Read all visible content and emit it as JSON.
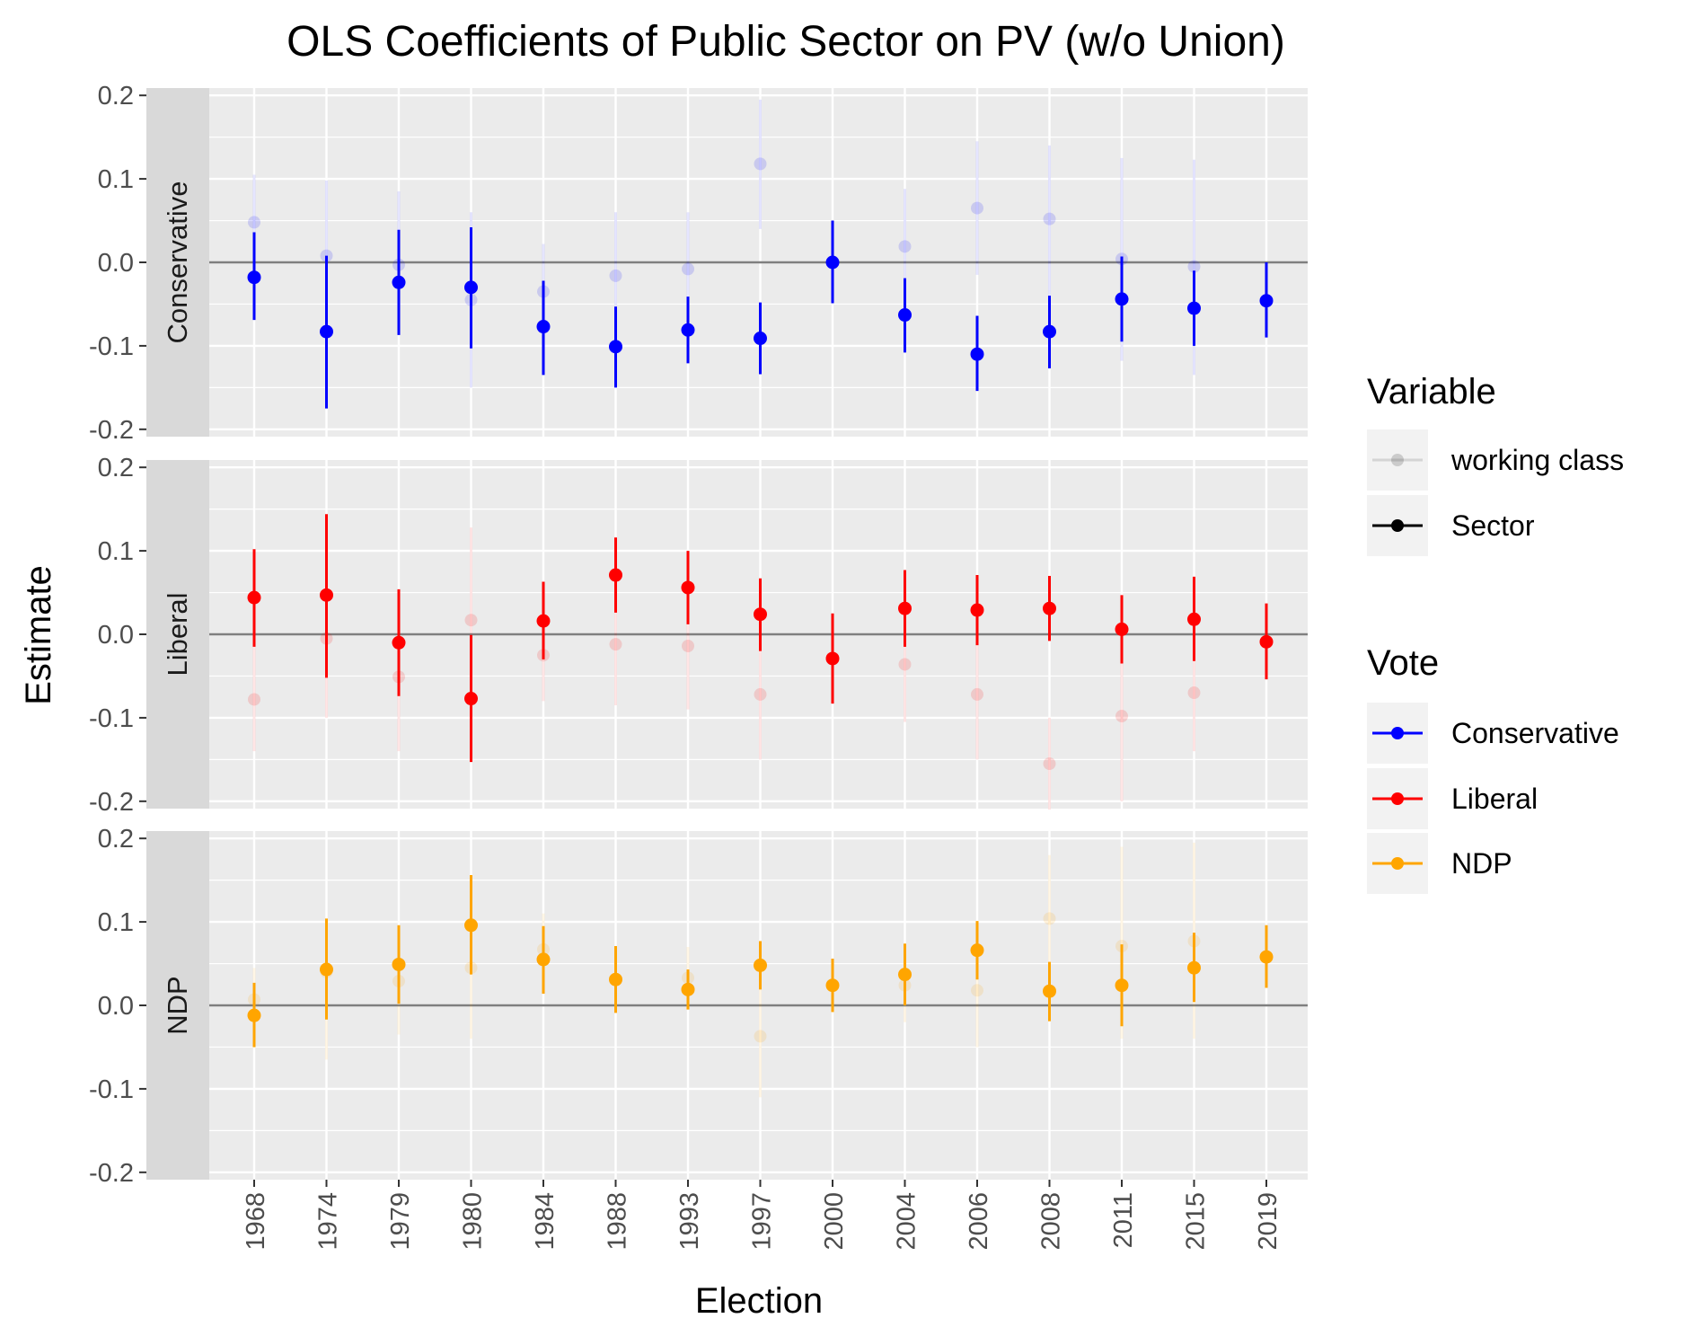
{
  "chart_data": {
    "type": "scatter",
    "title": "OLS Coefficients of Public Sector on PV (w/o Union)",
    "xlabel": "Election",
    "ylabel": "Estimate",
    "ylim": [
      -0.2,
      0.2
    ],
    "yticks": [
      "0.2",
      "0.1",
      "0.0",
      "-0.1",
      "-0.2"
    ],
    "ytick_values": [
      0.2,
      0.1,
      0.0,
      -0.1,
      -0.2
    ],
    "categories": [
      "1968",
      "1974",
      "1979",
      "1980",
      "1984",
      "1988",
      "1993",
      "1997",
      "2000",
      "2004",
      "2006",
      "2008",
      "2011",
      "2015",
      "2019"
    ],
    "grid": true,
    "reference_line": 0,
    "colors": {
      "Conservative": "#0000ff",
      "Liberal": "#ff0000",
      "NDP": "#ffa500",
      "panel_bg": "#ebebeb",
      "strip_bg": "#d9d9d9",
      "grid": "#ffffff",
      "zero_line": "#7f7f7f"
    },
    "panels": [
      {
        "strip": "Conservative",
        "color": "#0000ff",
        "sector": {
          "est": [
            -0.018,
            -0.083,
            -0.024,
            -0.03,
            -0.077,
            -0.101,
            -0.081,
            -0.091,
            0.0,
            -0.063,
            -0.11,
            -0.083,
            -0.044,
            -0.055,
            -0.046
          ],
          "lower": [
            -0.069,
            -0.175,
            -0.087,
            -0.103,
            -0.135,
            -0.15,
            -0.121,
            -0.134,
            -0.049,
            -0.108,
            -0.154,
            -0.127,
            -0.095,
            -0.1,
            -0.09
          ],
          "upper": [
            0.036,
            0.008,
            0.039,
            0.042,
            -0.022,
            -0.053,
            -0.041,
            -0.048,
            0.05,
            -0.019,
            -0.064,
            -0.04,
            0.007,
            -0.01,
            0.0
          ]
        },
        "working_class": {
          "est": [
            0.048,
            0.008,
            -0.003,
            -0.045,
            -0.035,
            -0.016,
            -0.008,
            0.118,
            null,
            0.019,
            0.065,
            0.052,
            0.004,
            -0.005,
            null
          ],
          "lower": [
            -0.01,
            -0.09,
            -0.08,
            -0.15,
            -0.09,
            -0.08,
            -0.07,
            0.04,
            null,
            -0.05,
            -0.015,
            -0.04,
            -0.118,
            -0.135,
            null
          ],
          "upper": [
            0.105,
            0.098,
            0.085,
            0.06,
            0.022,
            0.06,
            0.06,
            0.195,
            null,
            0.088,
            0.145,
            0.14,
            0.125,
            0.123,
            null
          ]
        }
      },
      {
        "strip": "Liberal",
        "color": "#ff0000",
        "sector": {
          "est": [
            0.044,
            0.047,
            -0.01,
            -0.077,
            0.016,
            0.071,
            0.056,
            0.024,
            -0.029,
            0.031,
            0.029,
            0.031,
            0.006,
            0.018,
            -0.009
          ],
          "lower": [
            -0.015,
            -0.052,
            -0.074,
            -0.153,
            -0.03,
            0.026,
            0.012,
            -0.02,
            -0.083,
            -0.015,
            -0.013,
            -0.008,
            -0.035,
            -0.032,
            -0.054
          ],
          "upper": [
            0.102,
            0.144,
            0.054,
            -0.001,
            0.063,
            0.116,
            0.1,
            0.067,
            0.025,
            0.077,
            0.071,
            0.07,
            0.047,
            0.069,
            0.037
          ]
        },
        "working_class": {
          "est": [
            -0.078,
            -0.005,
            -0.051,
            0.017,
            -0.025,
            -0.012,
            -0.014,
            -0.072,
            null,
            -0.036,
            -0.072,
            -0.155,
            -0.098,
            -0.07,
            null
          ],
          "lower": [
            -0.14,
            -0.1,
            -0.14,
            -0.09,
            -0.08,
            -0.085,
            -0.09,
            -0.15,
            null,
            -0.105,
            -0.15,
            -0.21,
            -0.2,
            -0.14,
            null
          ],
          "upper": [
            -0.015,
            0.095,
            0.04,
            0.128,
            0.03,
            0.06,
            0.06,
            0.005,
            null,
            0.03,
            0.005,
            -0.1,
            0.0,
            0.0,
            null
          ]
        }
      },
      {
        "strip": "NDP",
        "color": "#ffa500",
        "sector": {
          "est": [
            -0.012,
            0.043,
            0.049,
            0.096,
            0.055,
            0.031,
            0.019,
            0.048,
            0.024,
            0.037,
            0.066,
            0.017,
            0.024,
            0.045,
            0.058
          ],
          "lower": [
            -0.05,
            -0.017,
            0.002,
            0.037,
            0.014,
            -0.009,
            -0.005,
            0.019,
            -0.008,
            0.0,
            0.031,
            -0.019,
            -0.025,
            0.004,
            0.021
          ],
          "upper": [
            0.027,
            0.104,
            0.096,
            0.156,
            0.095,
            0.071,
            0.043,
            0.077,
            0.056,
            0.074,
            0.101,
            0.052,
            0.073,
            0.087,
            0.096
          ]
        },
        "working_class": {
          "est": [
            0.007,
            0.04,
            0.029,
            0.045,
            0.067,
            null,
            0.033,
            -0.037,
            null,
            0.024,
            0.018,
            0.104,
            0.071,
            0.077,
            null
          ],
          "lower": [
            -0.03,
            -0.065,
            -0.035,
            -0.04,
            0.04,
            null,
            0.0,
            -0.11,
            null,
            -0.02,
            -0.05,
            0.03,
            -0.04,
            -0.04,
            null
          ],
          "upper": [
            0.045,
            0.1,
            0.09,
            0.13,
            0.11,
            null,
            0.07,
            0.04,
            null,
            0.07,
            0.08,
            0.18,
            0.19,
            0.195,
            null
          ]
        }
      }
    ],
    "legend": {
      "placement": "right",
      "variable_title": "Variable",
      "variable_items": [
        {
          "label": "working class",
          "color": "#000000",
          "faded": true
        },
        {
          "label": "Sector",
          "color": "#000000",
          "faded": false
        }
      ],
      "vote_title": "Vote",
      "vote_items": [
        {
          "label": "Conservative",
          "color": "#0000ff"
        },
        {
          "label": "Liberal",
          "color": "#ff0000"
        },
        {
          "label": "NDP",
          "color": "#ffa500"
        }
      ]
    }
  }
}
